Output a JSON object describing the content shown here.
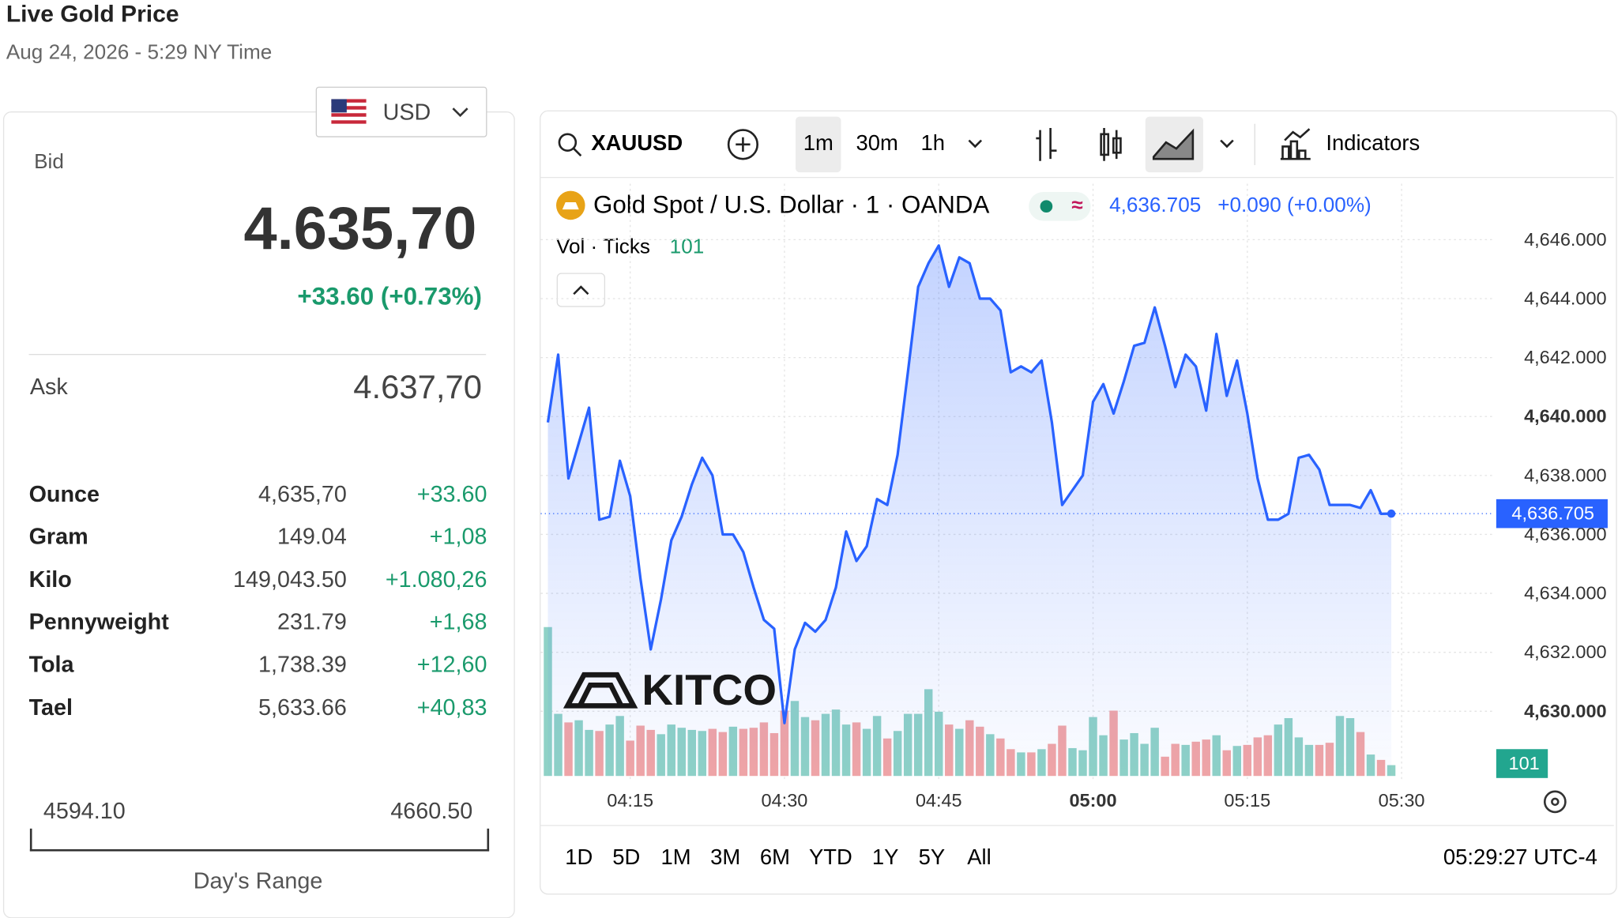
{
  "header": {
    "title": "Live Gold Price",
    "datetime": "Aug 24, 2026 - 5:29 NY Time"
  },
  "currency": "USD",
  "quote": {
    "bid_label": "Bid",
    "bid": "4.635,70",
    "change": "+33.60 (+0.73%)",
    "ask_label": "Ask",
    "ask": "4.637,70"
  },
  "units": {
    "rows": [
      {
        "name": "Ounce",
        "value": "4,635,70",
        "change": "+33.60"
      },
      {
        "name": "Gram",
        "value": "149.04",
        "change": "+1,08"
      },
      {
        "name": "Kilo",
        "value": "149,043.50",
        "change": "+1.080,26"
      },
      {
        "name": "Pennyweight",
        "value": "231.79",
        "change": "+1,68"
      },
      {
        "name": "Tola",
        "value": "1,738.39",
        "change": "+12,60"
      },
      {
        "name": "Tael",
        "value": "5,633.66",
        "change": "+40,83"
      }
    ]
  },
  "range": {
    "low": "4594.10",
    "high": "4660.50",
    "label": "Day's Range"
  },
  "toolbar": {
    "symbol": "XAUUSD",
    "intervals": [
      "1m",
      "30m",
      "1h"
    ],
    "indicators": "Indicators"
  },
  "ranges": [
    "1D",
    "5D",
    "1M",
    "3M",
    "6M",
    "YTD",
    "1Y",
    "5Y",
    "All"
  ],
  "clock": "05:29:27 UTC-4",
  "watermark": "KITCO",
  "chart_data": {
    "type": "line",
    "x": [
      "04:07",
      "04:08",
      "04:09",
      "04:10",
      "04:11",
      "04:12",
      "04:13",
      "04:14",
      "04:15",
      "04:16",
      "04:17",
      "04:18",
      "04:19",
      "04:20",
      "04:21",
      "04:22",
      "04:23",
      "04:24",
      "04:25",
      "04:26",
      "04:27",
      "04:28",
      "04:29",
      "04:30",
      "04:31",
      "04:32",
      "04:33",
      "04:34",
      "04:35",
      "04:36",
      "04:37",
      "04:38",
      "04:39",
      "04:40",
      "04:41",
      "04:42",
      "04:43",
      "04:44",
      "04:45",
      "04:46",
      "04:47",
      "04:48",
      "04:49",
      "04:50",
      "04:51",
      "04:52",
      "04:53",
      "04:54",
      "04:55",
      "04:56",
      "04:57",
      "04:58",
      "04:59",
      "05:00",
      "05:01",
      "05:02",
      "05:03",
      "05:04",
      "05:05",
      "05:06",
      "05:07",
      "05:08",
      "05:09",
      "05:10",
      "05:11",
      "05:12",
      "05:13",
      "05:14",
      "05:15",
      "05:16",
      "05:17",
      "05:18",
      "05:19",
      "05:20",
      "05:21",
      "05:22",
      "05:23",
      "05:24",
      "05:25",
      "05:26",
      "05:27",
      "05:28",
      "05:29"
    ],
    "series": [
      {
        "name": "Gold Spot / U.S. Dollar · 1 · OANDA",
        "color": "#2962ff",
        "values": [
          4639.8,
          4642.1,
          4637.9,
          4639.1,
          4640.3,
          4636.5,
          4636.6,
          4638.5,
          4637.3,
          4634.5,
          4632.1,
          4633.8,
          4635.8,
          4636.6,
          4637.7,
          4638.6,
          4638.0,
          4636.0,
          4636.0,
          4635.4,
          4634.2,
          4633.1,
          4632.8,
          4629.6,
          4632.1,
          4633.0,
          4632.7,
          4633.1,
          4634.2,
          4636.1,
          4635.1,
          4635.6,
          4637.2,
          4637.0,
          4638.7,
          4641.5,
          4644.4,
          4645.2,
          4645.8,
          4644.4,
          4645.4,
          4645.2,
          4644.0,
          4644.0,
          4643.6,
          4641.5,
          4641.7,
          4641.5,
          4641.9,
          4639.8,
          4637.0,
          4637.5,
          4638.0,
          4640.5,
          4641.1,
          4640.1,
          4641.2,
          4642.4,
          4642.5,
          4643.7,
          4642.4,
          4641.0,
          4642.1,
          4641.7,
          4640.2,
          4642.8,
          4640.7,
          4641.9,
          4640.1,
          4637.9,
          4636.5,
          4636.5,
          4636.7,
          4638.6,
          4638.7,
          4638.2,
          4637.0,
          4637.0,
          4637.0,
          4636.9,
          4637.5,
          4636.7,
          4636.705
        ]
      },
      {
        "name": "Vol · Ticks",
        "axis": "y2",
        "up_color": "#8fd2c6",
        "down_color": "#f2a5a5",
        "values": [
          1390,
          580,
          500,
          520,
          430,
          420,
          480,
          560,
          330,
          470,
          430,
          390,
          480,
          450,
          430,
          420,
          440,
          410,
          460,
          440,
          450,
          500,
          400,
          610,
          700,
          550,
          520,
          580,
          620,
          480,
          500,
          440,
          560,
          350,
          420,
          580,
          580,
          810,
          600,
          480,
          440,
          520,
          460,
          390,
          350,
          250,
          220,
          220,
          250,
          300,
          470,
          260,
          240,
          550,
          380,
          610,
          340,
          400,
          300,
          450,
          180,
          300,
          290,
          320,
          340,
          380,
          240,
          280,
          290,
          360,
          380,
          480,
          540,
          360,
          290,
          290,
          310,
          560,
          540,
          410,
          200,
          150,
          101
        ]
      }
    ],
    "last_change": "+0.090 (+0.00%)",
    "price_badge": {
      "value": 4636.705,
      "label": "4,636.705"
    },
    "xlim": [
      "04:06",
      "05:39"
    ],
    "xticks": [
      "04:15",
      "04:30",
      "04:45",
      "05:00",
      "05:15",
      "05:30"
    ],
    "ylim": [
      4627.7,
      4647.9
    ],
    "yticks": [
      {
        "value": 4630,
        "label": "4,630.000"
      },
      {
        "value": 4632,
        "label": "4,632.000"
      },
      {
        "value": 4634,
        "label": "4,634.000"
      },
      {
        "value": 4636,
        "label": "4,636.000"
      },
      {
        "value": 4638,
        "label": "4,638.000"
      },
      {
        "value": 4640,
        "label": "4,640.000"
      },
      {
        "value": 4642,
        "label": "4,642.000"
      },
      {
        "value": 4644,
        "label": "4,644.000"
      },
      {
        "value": 4646,
        "label": "4,646.000"
      }
    ],
    "y2lim": [
      0,
      5000
    ],
    "grid": true
  }
}
